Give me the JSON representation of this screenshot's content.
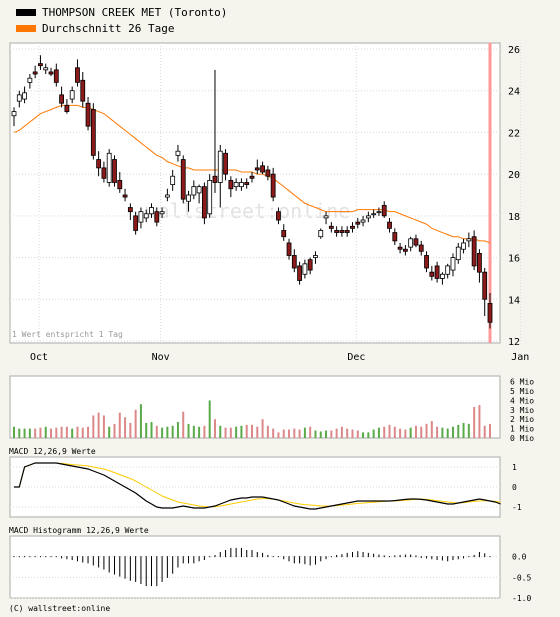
{
  "legend": [
    {
      "label": "THOMPSON CREEK MET (Toronto)",
      "color": "#000000"
    },
    {
      "label": "Durchschnitt 26 Tage",
      "color": "#ff7700"
    }
  ],
  "footnote": "1 Wert entspricht 1 Tag",
  "watermark": "wallstreet:online",
  "macd_title": "MACD 12,26,9 Werte",
  "hist_title": "MACD Histogramm 12,26,9 Werte",
  "copyright": "(C) wallstreet:online",
  "colors": {
    "up": "#ffffff",
    "down": "#8b1a1a",
    "avg": "#ff7700",
    "signal": "#ffcc00",
    "vol_up": "#5aaa4a",
    "vol_down": "#dd8888",
    "marker": "#ff9999"
  },
  "chart_data": [
    {
      "type": "candlestick",
      "panel": "price",
      "ylim": [
        12,
        26
      ],
      "yticks": [
        12,
        14,
        16,
        18,
        20,
        22,
        24,
        26
      ],
      "xticks": [
        {
          "label": "Oct",
          "index": 7
        },
        {
          "label": "Nov",
          "index": 30
        },
        {
          "label": "Dec",
          "index": 67
        },
        {
          "label": "Jan",
          "index": 98
        }
      ],
      "series": [
        {
          "name": "THOMPSON CREEK MET (Toronto)",
          "ohlc": [
            [
              22.8,
              23.2,
              22.3,
              23.0
            ],
            [
              23.5,
              24.0,
              23.2,
              23.8
            ],
            [
              23.6,
              24.2,
              23.4,
              23.9
            ],
            [
              24.4,
              24.8,
              24.1,
              24.6
            ],
            [
              24.9,
              25.2,
              24.6,
              24.8
            ],
            [
              25.3,
              25.7,
              25.0,
              25.2
            ],
            [
              25.0,
              25.3,
              24.8,
              25.1
            ],
            [
              24.9,
              25.1,
              24.7,
              24.8
            ],
            [
              25.0,
              25.3,
              24.2,
              24.4
            ],
            [
              23.8,
              24.2,
              23.2,
              23.4
            ],
            [
              23.3,
              23.6,
              22.9,
              23.0
            ],
            [
              23.6,
              24.2,
              23.4,
              24.0
            ],
            [
              25.1,
              25.5,
              24.2,
              24.4
            ],
            [
              24.5,
              24.9,
              23.2,
              23.5
            ],
            [
              23.4,
              23.7,
              22.1,
              22.3
            ],
            [
              23.1,
              23.4,
              20.7,
              20.9
            ],
            [
              20.7,
              21.1,
              19.9,
              20.3
            ],
            [
              20.3,
              20.6,
              19.6,
              19.8
            ],
            [
              19.6,
              21.2,
              19.4,
              21.0
            ],
            [
              20.7,
              20.9,
              19.4,
              19.6
            ],
            [
              19.7,
              20.1,
              19.1,
              19.3
            ],
            [
              19.0,
              19.3,
              18.7,
              18.9
            ],
            [
              18.4,
              18.6,
              17.8,
              18.2
            ],
            [
              18.0,
              18.2,
              17.1,
              17.3
            ],
            [
              17.7,
              18.4,
              17.4,
              18.2
            ],
            [
              17.9,
              18.3,
              17.7,
              18.1
            ],
            [
              18.1,
              18.6,
              17.9,
              18.4
            ],
            [
              18.2,
              18.4,
              17.5,
              17.7
            ],
            [
              18.1,
              18.4,
              17.9,
              18.2
            ],
            [
              18.9,
              19.3,
              18.7,
              19.0
            ],
            [
              19.5,
              20.2,
              19.2,
              19.9
            ],
            [
              20.9,
              21.4,
              20.6,
              21.1
            ],
            [
              20.7,
              20.9,
              18.6,
              18.8
            ],
            [
              18.7,
              19.2,
              18.2,
              19.0
            ],
            [
              19.0,
              19.7,
              18.8,
              19.4
            ],
            [
              19.1,
              19.5,
              18.6,
              19.4
            ],
            [
              19.4,
              19.6,
              17.6,
              17.9
            ],
            [
              18.1,
              20.0,
              17.9,
              19.7
            ],
            [
              19.9,
              25.0,
              19.1,
              19.6
            ],
            [
              19.6,
              21.4,
              18.4,
              21.1
            ],
            [
              21.0,
              21.2,
              19.7,
              20.0
            ],
            [
              19.7,
              19.9,
              18.9,
              19.3
            ],
            [
              19.4,
              19.8,
              19.2,
              19.6
            ],
            [
              19.4,
              19.8,
              19.2,
              19.6
            ],
            [
              19.6,
              19.8,
              19.3,
              19.5
            ],
            [
              19.9,
              20.1,
              19.6,
              19.8
            ],
            [
              20.3,
              20.7,
              20.0,
              20.2
            ],
            [
              20.4,
              20.6,
              20.0,
              20.1
            ],
            [
              20.2,
              20.4,
              19.7,
              19.9
            ],
            [
              20.0,
              20.3,
              18.7,
              18.9
            ],
            [
              18.2,
              18.4,
              17.6,
              17.8
            ],
            [
              17.3,
              17.6,
              16.8,
              17.0
            ],
            [
              16.7,
              16.9,
              15.9,
              16.1
            ],
            [
              16.1,
              16.4,
              15.3,
              15.5
            ],
            [
              15.6,
              15.8,
              14.7,
              14.9
            ],
            [
              15.2,
              15.9,
              15.0,
              15.7
            ],
            [
              15.9,
              16.0,
              15.2,
              15.4
            ],
            [
              16.0,
              16.3,
              15.7,
              16.1
            ],
            [
              17.0,
              17.4,
              16.9,
              17.3
            ],
            [
              17.9,
              18.2,
              17.6,
              18.0
            ],
            [
              17.5,
              17.7,
              17.2,
              17.4
            ],
            [
              17.3,
              17.5,
              17.0,
              17.2
            ],
            [
              17.3,
              17.5,
              17.0,
              17.2
            ],
            [
              17.3,
              17.5,
              17.0,
              17.2
            ],
            [
              17.5,
              17.7,
              17.2,
              17.4
            ],
            [
              17.7,
              17.9,
              17.4,
              17.6
            ],
            [
              17.7,
              18.0,
              17.5,
              17.8
            ],
            [
              17.9,
              18.2,
              17.7,
              18.0
            ],
            [
              18.1,
              18.3,
              17.9,
              18.1
            ],
            [
              18.2,
              18.4,
              18.0,
              18.2
            ],
            [
              18.5,
              18.7,
              17.9,
              18.0
            ],
            [
              17.7,
              17.9,
              17.2,
              17.4
            ],
            [
              17.2,
              17.4,
              16.6,
              16.8
            ],
            [
              16.5,
              16.7,
              16.2,
              16.4
            ],
            [
              16.4,
              16.6,
              16.1,
              16.3
            ],
            [
              16.5,
              17.0,
              16.3,
              16.9
            ],
            [
              16.9,
              17.1,
              16.5,
              16.6
            ],
            [
              16.6,
              16.8,
              16.1,
              16.3
            ],
            [
              16.1,
              16.3,
              15.3,
              15.5
            ],
            [
              15.3,
              15.6,
              14.9,
              15.1
            ],
            [
              15.6,
              15.8,
              14.8,
              15.0
            ],
            [
              15.0,
              15.3,
              14.7,
              15.2
            ],
            [
              15.2,
              15.7,
              15.0,
              15.6
            ],
            [
              15.4,
              16.2,
              15.1,
              16.0
            ],
            [
              15.9,
              16.7,
              15.7,
              16.5
            ],
            [
              16.4,
              16.9,
              16.2,
              16.7
            ],
            [
              16.8,
              17.2,
              16.5,
              16.9
            ],
            [
              17.0,
              17.3,
              15.4,
              15.6
            ],
            [
              16.2,
              16.4,
              14.8,
              15.3
            ],
            [
              15.3,
              15.5,
              13.2,
              14.0
            ],
            [
              13.8,
              14.3,
              12.6,
              12.9
            ]
          ]
        },
        {
          "name": "Durchschnitt 26 Tage",
          "values": [
            22.0,
            22.1,
            22.3,
            22.5,
            22.7,
            22.9,
            23.0,
            23.1,
            23.2,
            23.3,
            23.3,
            23.3,
            23.3,
            23.2,
            23.2,
            23.1,
            23.0,
            22.9,
            22.7,
            22.5,
            22.3,
            22.1,
            21.9,
            21.7,
            21.5,
            21.3,
            21.1,
            20.9,
            20.8,
            20.6,
            20.5,
            20.4,
            20.3,
            20.3,
            20.2,
            20.2,
            20.2,
            20.2,
            20.2,
            20.2,
            20.2,
            20.2,
            20.2,
            20.1,
            20.1,
            20.1,
            20.0,
            20.0,
            19.9,
            19.8,
            19.6,
            19.4,
            19.2,
            19.0,
            18.8,
            18.6,
            18.5,
            18.4,
            18.3,
            18.2,
            18.2,
            18.2,
            18.2,
            18.2,
            18.2,
            18.3,
            18.3,
            18.3,
            18.3,
            18.3,
            18.3,
            18.2,
            18.2,
            18.1,
            18.0,
            17.9,
            17.8,
            17.7,
            17.6,
            17.4,
            17.3,
            17.2,
            17.1,
            17.0,
            17.0,
            16.9,
            16.9,
            16.9,
            16.8,
            16.8,
            16.7
          ]
        }
      ]
    },
    {
      "type": "bar",
      "panel": "volume",
      "ylabel": "Mio",
      "ylim": [
        0,
        6
      ],
      "yticks": [
        "0 Mio",
        "1 Mio",
        "2 Mio",
        "3 Mio",
        "4 Mio",
        "5 Mio",
        "6 Mio"
      ],
      "values": [
        1.2,
        1.0,
        1.0,
        1.0,
        1.0,
        1.1,
        1.2,
        1.0,
        1.1,
        1.2,
        1.2,
        1.0,
        1.2,
        1.1,
        1.2,
        2.4,
        2.7,
        2.4,
        1.2,
        1.5,
        2.7,
        2.2,
        1.6,
        3.0,
        3.6,
        1.6,
        1.7,
        1.3,
        1.1,
        1.2,
        1.3,
        1.7,
        2.8,
        1.5,
        1.3,
        1.2,
        1.3,
        4.0,
        2.0,
        1.3,
        1.1,
        1.1,
        1.2,
        1.3,
        1.4,
        1.4,
        1.2,
        2.0,
        1.3,
        1.0,
        0.6,
        0.9,
        0.9,
        1.0,
        0.9,
        1.1,
        1.2,
        0.8,
        0.7,
        0.8,
        0.8,
        1.0,
        1.2,
        1.0,
        0.9,
        0.8,
        0.6,
        0.6,
        0.9,
        1.1,
        1.2,
        1.4,
        1.2,
        1.0,
        0.9,
        1.1,
        1.3,
        1.2,
        1.5,
        1.8,
        1.2,
        1.1,
        1.0,
        1.2,
        1.4,
        1.6,
        1.5,
        3.3,
        3.5,
        1.3,
        1.5,
        1.9,
        2.4,
        1.2
      ],
      "colors_by_candle": true,
      "values_scale_max": 6.6,
      "visible_range": [
        0,
        93
      ]
    },
    {
      "type": "line",
      "panel": "macd",
      "ylim": [
        -1.5,
        1.5
      ],
      "yticks": [
        -1,
        0,
        1
      ],
      "series": [
        {
          "name": "MACD",
          "values": [
            0.0,
            0.0,
            1.0,
            1.1,
            1.2,
            1.2,
            1.2,
            1.2,
            1.2,
            1.15,
            1.1,
            1.05,
            1.0,
            0.95,
            0.9,
            0.8,
            0.7,
            0.6,
            0.45,
            0.3,
            0.15,
            0.0,
            -0.15,
            -0.3,
            -0.5,
            -0.7,
            -0.85,
            -1.0,
            -1.05,
            -1.05,
            -1.05,
            -1.0,
            -0.95,
            -1.0,
            -1.05,
            -1.05,
            -1.05,
            -1.0,
            -0.95,
            -0.85,
            -0.75,
            -0.65,
            -0.6,
            -0.55,
            -0.55,
            -0.5,
            -0.5,
            -0.5,
            -0.55,
            -0.6,
            -0.65,
            -0.75,
            -0.85,
            -0.95,
            -1.0,
            -1.05,
            -1.1,
            -1.1,
            -1.05,
            -1.0,
            -0.95,
            -0.9,
            -0.85,
            -0.8,
            -0.75,
            -0.7,
            -0.7,
            -0.7,
            -0.7,
            -0.7,
            -0.7,
            -0.7,
            -0.68,
            -0.65,
            -0.62,
            -0.6,
            -0.6,
            -0.62,
            -0.65,
            -0.7,
            -0.75,
            -0.8,
            -0.85,
            -0.85,
            -0.8,
            -0.75,
            -0.7,
            -0.65,
            -0.6,
            -0.65,
            -0.7,
            -0.75,
            -0.85
          ]
        },
        {
          "name": "Signal",
          "values": [
            0.0,
            0.0,
            1.0,
            1.1,
            1.2,
            1.2,
            1.2,
            1.2,
            1.2,
            1.18,
            1.15,
            1.12,
            1.1,
            1.08,
            1.05,
            1.0,
            0.95,
            0.9,
            0.82,
            0.72,
            0.62,
            0.52,
            0.42,
            0.3,
            0.15,
            0.0,
            -0.15,
            -0.3,
            -0.45,
            -0.55,
            -0.65,
            -0.75,
            -0.8,
            -0.85,
            -0.9,
            -0.95,
            -0.98,
            -1.0,
            -0.98,
            -0.95,
            -0.9,
            -0.85,
            -0.8,
            -0.75,
            -0.7,
            -0.65,
            -0.6,
            -0.58,
            -0.58,
            -0.6,
            -0.65,
            -0.7,
            -0.75,
            -0.8,
            -0.85,
            -0.88,
            -0.9,
            -0.92,
            -0.95,
            -0.95,
            -0.95,
            -0.93,
            -0.9,
            -0.88,
            -0.85,
            -0.82,
            -0.8,
            -0.78,
            -0.76,
            -0.74,
            -0.72,
            -0.7,
            -0.7,
            -0.68,
            -0.66,
            -0.64,
            -0.62,
            -0.6,
            -0.62,
            -0.65,
            -0.68,
            -0.72,
            -0.75,
            -0.78,
            -0.8,
            -0.78,
            -0.75,
            -0.72,
            -0.7,
            -0.68,
            -0.7,
            -0.72,
            -0.76
          ]
        }
      ]
    },
    {
      "type": "bar",
      "panel": "macd_histogram",
      "ylim": [
        -1.0,
        0.5
      ],
      "yticks": [
        -1.0,
        -0.5,
        0.0
      ],
      "values": [
        0.0,
        0.0,
        0.0,
        0.0,
        0.0,
        0.0,
        0.0,
        0.0,
        0.0,
        -0.03,
        -0.05,
        -0.07,
        -0.1,
        -0.13,
        -0.15,
        -0.2,
        -0.25,
        -0.3,
        -0.37,
        -0.42,
        -0.47,
        -0.52,
        -0.57,
        -0.6,
        -0.65,
        -0.7,
        -0.7,
        -0.7,
        -0.6,
        -0.5,
        -0.4,
        -0.25,
        -0.15,
        -0.15,
        -0.15,
        -0.1,
        -0.07,
        0.0,
        0.03,
        0.1,
        0.15,
        0.2,
        0.2,
        0.2,
        0.15,
        0.15,
        0.1,
        0.08,
        0.03,
        0.0,
        0.0,
        -0.05,
        -0.1,
        -0.15,
        -0.15,
        -0.17,
        -0.2,
        -0.18,
        -0.1,
        -0.05,
        0.0,
        0.03,
        0.05,
        0.08,
        0.1,
        0.12,
        0.1,
        0.08,
        0.06,
        0.04,
        0.02,
        0.0,
        0.02,
        0.03,
        0.04,
        0.04,
        0.02,
        -0.02,
        -0.03,
        -0.05,
        -0.07,
        -0.08,
        -0.1,
        -0.07,
        -0.05,
        -0.03,
        0.0,
        0.03,
        0.1,
        0.07,
        0.0,
        -0.03,
        -0.09
      ]
    }
  ]
}
